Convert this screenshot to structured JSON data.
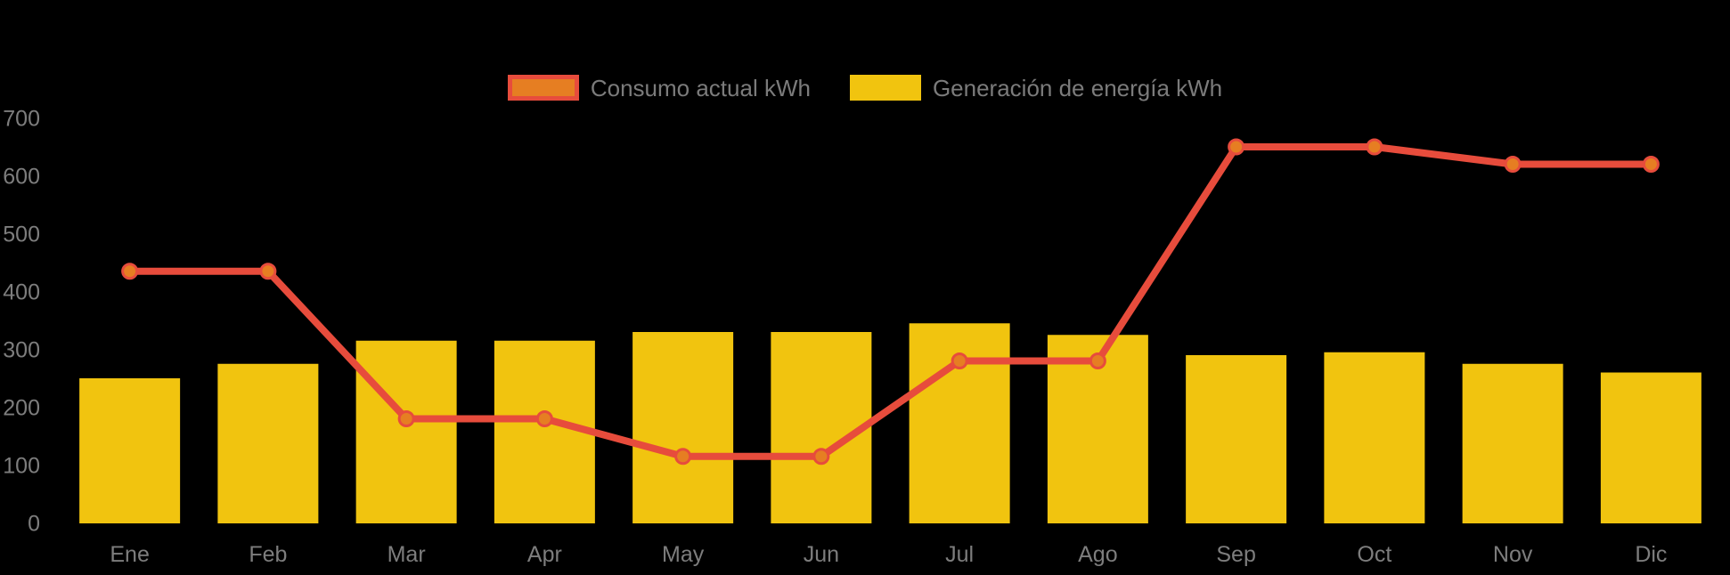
{
  "chart": {
    "background": "#000000",
    "text_color": "#7d7d7d",
    "legend_position": "top-center"
  },
  "chart_data": {
    "type": "combo",
    "categories": [
      "Ene",
      "Feb",
      "Mar",
      "Apr",
      "May",
      "Jun",
      "Jul",
      "Ago",
      "Sep",
      "Oct",
      "Nov",
      "Dic"
    ],
    "series": [
      {
        "name": "Consumo actual kWh",
        "type": "line",
        "color": "#e74c3c",
        "point_color": "#e67e22",
        "values": [
          435,
          435,
          180,
          180,
          115,
          115,
          280,
          280,
          650,
          650,
          620,
          620
        ]
      },
      {
        "name": "Generación de energía kWh",
        "type": "bar",
        "color": "#f1c40f",
        "values": [
          250,
          275,
          315,
          315,
          330,
          330,
          345,
          325,
          290,
          295,
          275,
          260
        ]
      }
    ],
    "title": "",
    "xlabel": "",
    "ylabel": "",
    "ylim": [
      0,
      700
    ],
    "yticks": [
      0,
      100,
      200,
      300,
      400,
      500,
      600,
      700
    ],
    "grid": false
  }
}
